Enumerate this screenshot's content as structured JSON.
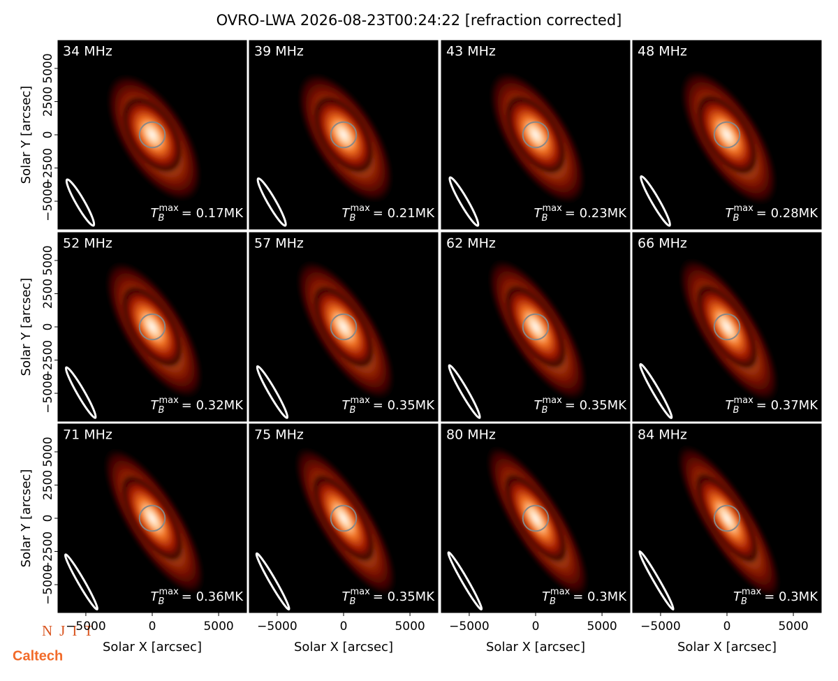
{
  "title": "OVRO-LWA 2026-08-23T00:24:22 [refraction corrected]",
  "chart_data": [
    {
      "type": "image",
      "title": "34 MHz",
      "annotation": {
        "symbol": "T",
        "sub": "B",
        "sup": "max",
        "text": "= 0.17MK"
      },
      "xlim": [
        -7100,
        7100
      ],
      "ylim": [
        -7100,
        7100
      ],
      "ylabel": "Solar Y [arcsec]",
      "yticks": [
        {
          "value": -5000,
          "label": "−5000"
        },
        {
          "value": -2500,
          "label": "−2500"
        },
        0,
        2500,
        5000
      ]
    },
    {
      "type": "image",
      "title": "39 MHz",
      "annotation": {
        "symbol": "T",
        "sub": "B",
        "sup": "max",
        "text": "= 0.21MK"
      },
      "xlim": [
        -7100,
        7100
      ],
      "ylim": [
        -7100,
        7100
      ]
    },
    {
      "type": "image",
      "title": "43 MHz",
      "annotation": {
        "symbol": "T",
        "sub": "B",
        "sup": "max",
        "text": "= 0.23MK"
      },
      "xlim": [
        -7100,
        7100
      ],
      "ylim": [
        -7100,
        7100
      ]
    },
    {
      "type": "image",
      "title": "48 MHz",
      "annotation": {
        "symbol": "T",
        "sub": "B",
        "sup": "max",
        "text": "= 0.28MK"
      },
      "xlim": [
        -7100,
        7100
      ],
      "ylim": [
        -7100,
        7100
      ]
    },
    {
      "type": "image",
      "title": "52 MHz",
      "annotation": {
        "symbol": "T",
        "sub": "B",
        "sup": "max",
        "text": "= 0.32MK"
      },
      "xlim": [
        -7100,
        7100
      ],
      "ylim": [
        -7100,
        7100
      ],
      "ylabel": "Solar Y [arcsec]",
      "yticks": [
        {
          "value": -5000,
          "label": "−5000"
        },
        {
          "value": -2500,
          "label": "−2500"
        },
        0,
        2500,
        5000
      ]
    },
    {
      "type": "image",
      "title": "57 MHz",
      "annotation": {
        "symbol": "T",
        "sub": "B",
        "sup": "max",
        "text": "= 0.35MK"
      },
      "xlim": [
        -7100,
        7100
      ],
      "ylim": [
        -7100,
        7100
      ]
    },
    {
      "type": "image",
      "title": "62 MHz",
      "annotation": {
        "symbol": "T",
        "sub": "B",
        "sup": "max",
        "text": "= 0.35MK"
      },
      "xlim": [
        -7100,
        7100
      ],
      "ylim": [
        -7100,
        7100
      ]
    },
    {
      "type": "image",
      "title": "66 MHz",
      "annotation": {
        "symbol": "T",
        "sub": "B",
        "sup": "max",
        "text": "= 0.37MK"
      },
      "xlim": [
        -7100,
        7100
      ],
      "ylim": [
        -7100,
        7100
      ]
    },
    {
      "type": "image",
      "title": "71 MHz",
      "annotation": {
        "symbol": "T",
        "sub": "B",
        "sup": "max",
        "text": "= 0.36MK"
      },
      "xlim": [
        -7100,
        7100
      ],
      "ylim": [
        -7100,
        7100
      ],
      "ylabel": "Solar Y [arcsec]",
      "yticks": [
        {
          "value": -5000,
          "label": "−5000"
        },
        {
          "value": -2500,
          "label": "−2500"
        },
        0,
        2500,
        5000
      ],
      "xlabel": "Solar X [arcsec]",
      "xticks": [
        {
          "value": -5000,
          "label": "−5000"
        },
        0,
        5000
      ]
    },
    {
      "type": "image",
      "title": "75 MHz",
      "annotation": {
        "symbol": "T",
        "sub": "B",
        "sup": "max",
        "text": "= 0.35MK"
      },
      "xlim": [
        -7100,
        7100
      ],
      "ylim": [
        -7100,
        7100
      ],
      "xlabel": "Solar X [arcsec]",
      "xticks": [
        {
          "value": -5000,
          "label": "−5000"
        },
        0,
        5000
      ]
    },
    {
      "type": "image",
      "title": "80 MHz",
      "annotation": {
        "symbol": "T",
        "sub": "B",
        "sup": "max",
        "text": "= 0.3MK"
      },
      "xlim": [
        -7100,
        7100
      ],
      "ylim": [
        -7100,
        7100
      ],
      "xlabel": "Solar X [arcsec]",
      "xticks": [
        {
          "value": -5000,
          "label": "−5000"
        },
        0,
        5000
      ]
    },
    {
      "type": "image",
      "title": "84 MHz",
      "annotation": {
        "symbol": "T",
        "sub": "B",
        "sup": "max",
        "text": "= 0.3MK"
      },
      "xlim": [
        -7100,
        7100
      ],
      "ylim": [
        -7100,
        7100
      ],
      "xlabel": "Solar X [arcsec]",
      "xticks": [
        {
          "value": -5000,
          "label": "−5000"
        },
        0,
        5000
      ]
    }
  ],
  "logos": [
    "NJIT",
    "Caltech"
  ]
}
